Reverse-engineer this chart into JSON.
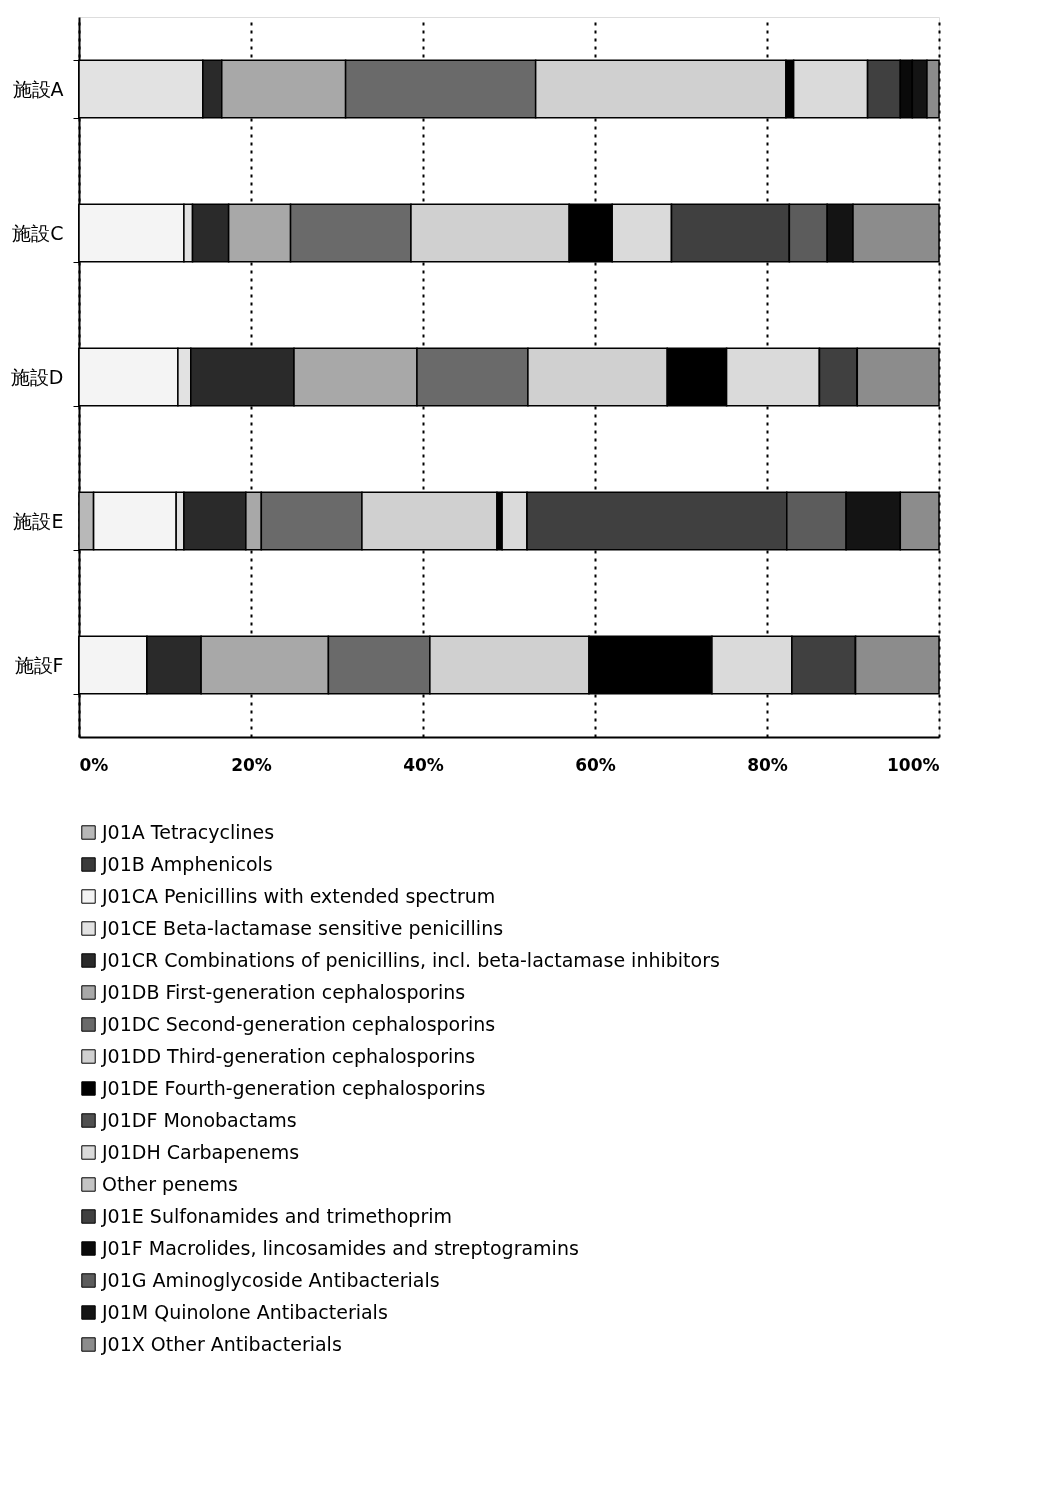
{
  "chart_data": {
    "type": "bar",
    "orientation": "horizontal",
    "stacked": true,
    "categories": [
      "施設A",
      "施設C",
      "施設D",
      "施設E",
      "施設F"
    ],
    "series": [
      {
        "name": "J01A Tetracyclines",
        "color": "#b8b8b8",
        "values": [
          0,
          0,
          0,
          1.7,
          0
        ]
      },
      {
        "name": "J01B Amphenicols",
        "color": "#3a3a3a",
        "values": [
          0,
          0,
          0,
          0,
          0
        ]
      },
      {
        "name": "J01CA Penicillins with extended spectrum",
        "color": "#f4f4f4",
        "values": [
          0,
          12.2,
          11.5,
          9.6,
          7.9
        ]
      },
      {
        "name": "J01CE Beta-lactamase sensitive penicillins",
        "color": "#e2e2e2",
        "values": [
          14.4,
          1.0,
          1.5,
          0.9,
          0
        ]
      },
      {
        "name": "J01CR Combinations of penicillins, incl. beta-lactamase inhibitors",
        "color": "#2a2a2a",
        "values": [
          2.2,
          4.2,
          12.0,
          7.2,
          6.3
        ]
      },
      {
        "name": "J01DB First-generation cephalosporins",
        "color": "#a8a8a8",
        "values": [
          14.4,
          7.2,
          14.3,
          1.8,
          14.8
        ]
      },
      {
        "name": "J01DC Second-generation cephalosporins",
        "color": "#6a6a6a",
        "values": [
          22.1,
          14.0,
          12.9,
          11.7,
          11.8
        ]
      },
      {
        "name": "J01DD Third-generation cephalosporins",
        "color": "#d0d0d0",
        "values": [
          29.1,
          18.4,
          16.2,
          15.7,
          18.5
        ]
      },
      {
        "name": "J01DE Fourth-generation cephalosporins",
        "color": "#000000",
        "values": [
          0.9,
          5.0,
          6.9,
          0.6,
          14.3
        ]
      },
      {
        "name": "J01DF Monobactams",
        "color": "#505050",
        "values": [
          0,
          0,
          0,
          0,
          0
        ]
      },
      {
        "name": "J01DH Carbapenems",
        "color": "#dadada",
        "values": [
          8.6,
          6.9,
          10.8,
          2.9,
          9.3
        ]
      },
      {
        "name": "Other penems",
        "color": "#c4c4c4",
        "values": [
          0,
          0,
          0,
          0,
          0
        ]
      },
      {
        "name": "J01E Sulfonamides and trimethoprim",
        "color": "#404040",
        "values": [
          3.8,
          13.7,
          4.4,
          30.2,
          7.4
        ]
      },
      {
        "name": "J01F Macrolides, lincosamides and streptogramins",
        "color": "#0a0a0a",
        "values": [
          1.4,
          0,
          0,
          0,
          0
        ]
      },
      {
        "name": "J01G Aminoglycoside Antibacterials",
        "color": "#5c5c5c",
        "values": [
          0,
          4.4,
          0,
          6.9,
          0
        ]
      },
      {
        "name": "J01M Quinolone Antibacterials",
        "color": "#141414",
        "values": [
          1.7,
          3.0,
          0,
          6.3,
          0
        ]
      },
      {
        "name": "J01X Other Antibacterials",
        "color": "#8c8c8c",
        "values": [
          1.4,
          10.0,
          9.5,
          4.5,
          9.7
        ]
      }
    ],
    "xlim": [
      0,
      100
    ],
    "xticks": [
      {
        "value": 0,
        "label": "0%"
      },
      {
        "value": 20,
        "label": "20%"
      },
      {
        "value": 40,
        "label": "40%"
      },
      {
        "value": 60,
        "label": "60%"
      },
      {
        "value": 80,
        "label": "80%"
      },
      {
        "value": 100,
        "label": "100%"
      }
    ],
    "grid": "x",
    "legend": "bottom"
  }
}
